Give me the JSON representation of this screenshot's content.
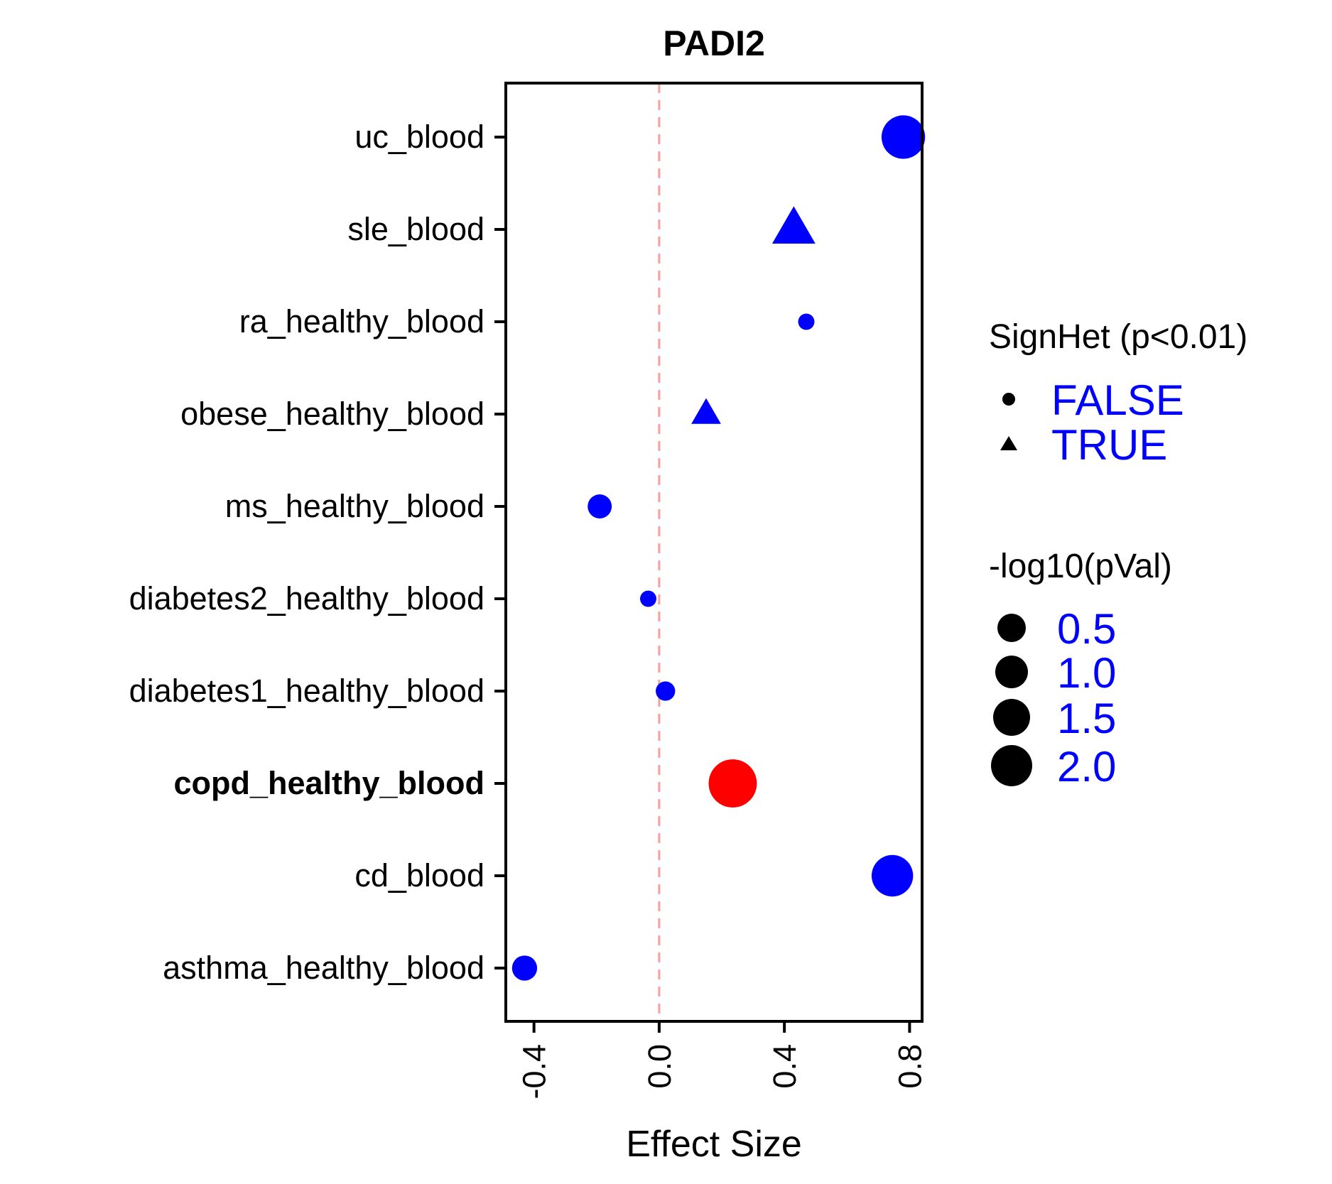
{
  "chart_data": {
    "type": "scatter",
    "title": "PADI2",
    "xlabel": "Effect Size",
    "ylabel": "",
    "xlim": [
      -0.49,
      0.84
    ],
    "x_ticks": [
      -0.4,
      0.0,
      0.4,
      0.8
    ],
    "x_tick_labels": [
      "-0.4",
      "0.0",
      "0.4",
      "0.8"
    ],
    "reference_line": {
      "x": 0.0,
      "style": "dashed",
      "color": "#f4a0a0"
    },
    "grid": false,
    "categories": [
      "uc_blood",
      "sle_blood",
      "ra_healthy_blood",
      "obese_healthy_blood",
      "ms_healthy_blood",
      "diabetes2_healthy_blood",
      "diabetes1_healthy_blood",
      "copd_healthy_blood",
      "cd_blood",
      "asthma_healthy_blood"
    ],
    "highlight_category": "copd_healthy_blood",
    "points": [
      {
        "category": "uc_blood",
        "effect": 0.78,
        "neglog10p": 1.9,
        "signhet": false,
        "color": "#0000ff"
      },
      {
        "category": "sle_blood",
        "effect": 0.43,
        "neglog10p": 1.5,
        "signhet": true,
        "color": "#0000ff"
      },
      {
        "category": "ra_healthy_blood",
        "effect": 0.47,
        "neglog10p": 0.15,
        "signhet": false,
        "color": "#0000ff"
      },
      {
        "category": "obese_healthy_blood",
        "effect": 0.15,
        "neglog10p": 0.6,
        "signhet": true,
        "color": "#0000ff"
      },
      {
        "category": "ms_healthy_blood",
        "effect": -0.19,
        "neglog10p": 0.45,
        "signhet": false,
        "color": "#0000ff"
      },
      {
        "category": "diabetes2_healthy_blood",
        "effect": -0.035,
        "neglog10p": 0.15,
        "signhet": false,
        "color": "#0000ff"
      },
      {
        "category": "diabetes1_healthy_blood",
        "effect": 0.02,
        "neglog10p": 0.25,
        "signhet": false,
        "color": "#0000ff"
      },
      {
        "category": "copd_healthy_blood",
        "effect": 0.235,
        "neglog10p": 2.4,
        "signhet": false,
        "color": "#ff0000"
      },
      {
        "category": "cd_blood",
        "effect": 0.745,
        "neglog10p": 1.7,
        "signhet": false,
        "color": "#0000ff"
      },
      {
        "category": "asthma_healthy_blood",
        "effect": -0.43,
        "neglog10p": 0.5,
        "signhet": false,
        "color": "#0000ff"
      }
    ],
    "legend": {
      "placement": "right",
      "shape": {
        "title": "SignHet (p<0.01)",
        "entries": [
          {
            "label": "FALSE",
            "shape": "circle"
          },
          {
            "label": "TRUE",
            "shape": "triangle"
          }
        ]
      },
      "size": {
        "title": "-log10(pVal)",
        "entries": [
          {
            "label": "0.5",
            "value": 0.5
          },
          {
            "label": "1.0",
            "value": 1.0
          },
          {
            "label": "1.5",
            "value": 1.5
          },
          {
            "label": "2.0",
            "value": 2.0
          }
        ]
      },
      "label_color": "#0000ff"
    }
  }
}
